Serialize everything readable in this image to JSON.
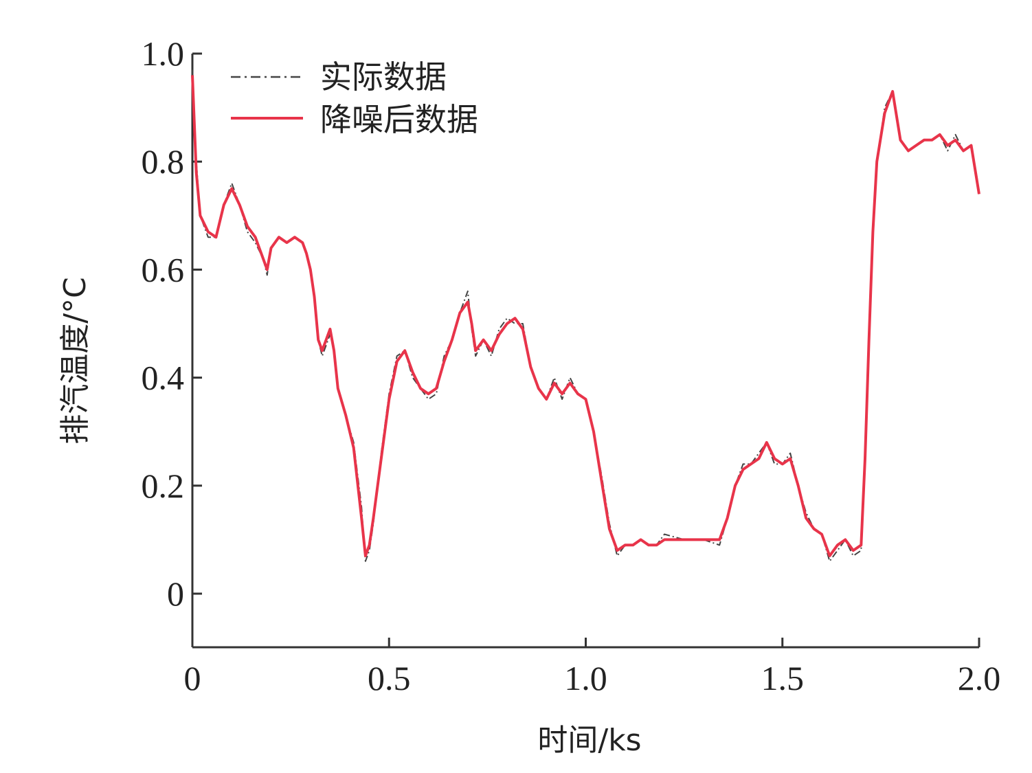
{
  "chart_data": {
    "type": "line",
    "title": "",
    "xlabel": "时间/ks",
    "ylabel": "排汽温度/°C",
    "xlim": [
      0,
      2.0
    ],
    "ylim": [
      -0.1,
      1.0
    ],
    "x_ticks": [
      0,
      0.5,
      1.0,
      1.5,
      2.0
    ],
    "x_tick_labels": [
      "0",
      "0.5",
      "1.0",
      "1.5",
      "2.0"
    ],
    "y_ticks": [
      0,
      0.2,
      0.4,
      0.6,
      0.8,
      1.0
    ],
    "y_tick_labels": [
      "0",
      "0.2",
      "0.4",
      "0.6",
      "0.8",
      "1.0"
    ],
    "grid": false,
    "legend_position": "top-left",
    "x": [
      0,
      0.01,
      0.02,
      0.04,
      0.06,
      0.08,
      0.1,
      0.12,
      0.14,
      0.16,
      0.18,
      0.19,
      0.2,
      0.22,
      0.24,
      0.26,
      0.28,
      0.29,
      0.3,
      0.31,
      0.32,
      0.33,
      0.35,
      0.36,
      0.37,
      0.39,
      0.41,
      0.43,
      0.44,
      0.45,
      0.46,
      0.48,
      0.5,
      0.52,
      0.54,
      0.56,
      0.58,
      0.6,
      0.62,
      0.64,
      0.66,
      0.68,
      0.7,
      0.71,
      0.72,
      0.74,
      0.76,
      0.78,
      0.8,
      0.82,
      0.84,
      0.86,
      0.88,
      0.9,
      0.92,
      0.94,
      0.96,
      0.98,
      1.0,
      1.02,
      1.04,
      1.06,
      1.08,
      1.1,
      1.12,
      1.14,
      1.16,
      1.18,
      1.2,
      1.25,
      1.3,
      1.34,
      1.36,
      1.38,
      1.4,
      1.42,
      1.44,
      1.46,
      1.48,
      1.5,
      1.52,
      1.54,
      1.56,
      1.58,
      1.6,
      1.62,
      1.64,
      1.66,
      1.68,
      1.7,
      1.71,
      1.72,
      1.73,
      1.74,
      1.76,
      1.78,
      1.8,
      1.82,
      1.84,
      1.86,
      1.88,
      1.9,
      1.92,
      1.94,
      1.96,
      1.98,
      2.0
    ],
    "series": [
      {
        "name": "实际数据",
        "style": "dash-dot",
        "color": "#444444",
        "values": [
          0.97,
          0.8,
          0.7,
          0.66,
          0.66,
          0.72,
          0.76,
          0.72,
          0.67,
          0.65,
          0.62,
          0.59,
          0.64,
          0.66,
          0.65,
          0.66,
          0.65,
          0.63,
          0.6,
          0.55,
          0.47,
          0.44,
          0.48,
          0.45,
          0.38,
          0.33,
          0.28,
          0.16,
          0.06,
          0.08,
          0.13,
          0.26,
          0.37,
          0.44,
          0.45,
          0.4,
          0.38,
          0.36,
          0.37,
          0.44,
          0.47,
          0.52,
          0.56,
          0.49,
          0.44,
          0.47,
          0.44,
          0.49,
          0.51,
          0.5,
          0.5,
          0.42,
          0.38,
          0.36,
          0.4,
          0.36,
          0.4,
          0.37,
          0.36,
          0.3,
          0.22,
          0.13,
          0.07,
          0.09,
          0.09,
          0.1,
          0.09,
          0.09,
          0.11,
          0.1,
          0.1,
          0.09,
          0.14,
          0.2,
          0.24,
          0.24,
          0.26,
          0.28,
          0.24,
          0.24,
          0.26,
          0.2,
          0.15,
          0.12,
          0.11,
          0.06,
          0.08,
          0.1,
          0.07,
          0.08,
          0.25,
          0.46,
          0.68,
          0.8,
          0.9,
          0.93,
          0.84,
          0.82,
          0.83,
          0.84,
          0.84,
          0.85,
          0.82,
          0.85,
          0.82,
          0.83,
          0.74
        ]
      },
      {
        "name": "降噪后数据",
        "style": "solid",
        "color": "#e8344a",
        "values": [
          0.96,
          0.78,
          0.7,
          0.67,
          0.66,
          0.72,
          0.75,
          0.72,
          0.68,
          0.66,
          0.62,
          0.6,
          0.64,
          0.66,
          0.65,
          0.66,
          0.65,
          0.63,
          0.6,
          0.55,
          0.47,
          0.45,
          0.49,
          0.45,
          0.38,
          0.33,
          0.27,
          0.14,
          0.07,
          0.09,
          0.14,
          0.25,
          0.36,
          0.43,
          0.45,
          0.41,
          0.38,
          0.37,
          0.38,
          0.43,
          0.47,
          0.52,
          0.54,
          0.5,
          0.45,
          0.47,
          0.45,
          0.48,
          0.5,
          0.51,
          0.49,
          0.42,
          0.38,
          0.36,
          0.39,
          0.37,
          0.39,
          0.37,
          0.36,
          0.3,
          0.21,
          0.12,
          0.08,
          0.09,
          0.09,
          0.1,
          0.09,
          0.09,
          0.1,
          0.1,
          0.1,
          0.1,
          0.14,
          0.2,
          0.23,
          0.24,
          0.25,
          0.28,
          0.25,
          0.24,
          0.25,
          0.2,
          0.14,
          0.12,
          0.11,
          0.07,
          0.09,
          0.1,
          0.08,
          0.09,
          0.25,
          0.47,
          0.67,
          0.8,
          0.89,
          0.93,
          0.84,
          0.82,
          0.83,
          0.84,
          0.84,
          0.85,
          0.83,
          0.84,
          0.82,
          0.83,
          0.74
        ]
      }
    ]
  }
}
